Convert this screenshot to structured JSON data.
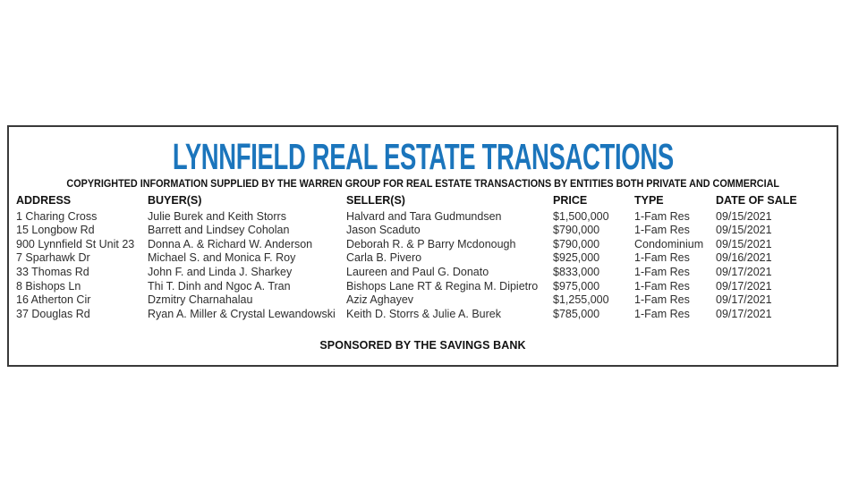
{
  "page": {
    "title": "LYNNFIELD REAL ESTATE TRANSACTIONS",
    "subtitle": "COPYRIGHTED INFORMATION SUPPLIED BY THE WARREN GROUP FOR REAL ESTATE TRANSACTIONS BY ENTITIES BOTH PRIVATE AND COMMERCIAL",
    "sponsor_note": "SPONSORED BY THE SAVINGS BANK"
  },
  "colors": {
    "title_blue": "#1b75bc",
    "border": "#3a3a3a",
    "body_text": "#2e2e2e"
  },
  "table": {
    "columns": [
      "ADDRESS",
      "BUYER(S)",
      "SELLER(S)",
      "PRICE",
      "TYPE",
      "DATE OF SALE"
    ],
    "rows": [
      {
        "address": "1 Charing Cross",
        "buyers": "Julie Burek and Keith Storrs",
        "sellers": "Halvard and Tara Gudmundsen",
        "price": "$1,500,000",
        "type": "1-Fam Res",
        "date": "09/15/2021"
      },
      {
        "address": "15 Longbow Rd",
        "buyers": "Barrett and Lindsey Coholan",
        "sellers": "Jason Scaduto",
        "price": "$790,000",
        "type": "1-Fam Res",
        "date": "09/15/2021"
      },
      {
        "address": "900 Lynnfield St Unit 23",
        "buyers": "Donna A. & Richard W. Anderson",
        "sellers": "Deborah R. & P Barry Mcdonough",
        "price": "$790,000",
        "type": "Condominium",
        "date": "09/15/2021"
      },
      {
        "address": "7 Sparhawk Dr",
        "buyers": "Michael S. and Monica F. Roy",
        "sellers": "Carla B. Pivero",
        "price": "$925,000",
        "type": "1-Fam Res",
        "date": "09/16/2021"
      },
      {
        "address": "33 Thomas Rd",
        "buyers": "John F. and Linda J. Sharkey",
        "sellers": "Laureen and Paul G. Donato",
        "price": "$833,000",
        "type": "1-Fam Res",
        "date": "09/17/2021"
      },
      {
        "address": "8 Bishops Ln",
        "buyers": "Thi T. Dinh and Ngoc A. Tran",
        "sellers": "Bishops Lane RT & Regina M. Dipietro",
        "price": "$975,000",
        "type": "1-Fam Res",
        "date": "09/17/2021"
      },
      {
        "address": "16 Atherton Cir",
        "buyers": "Dzmitry Charnahalau",
        "sellers": "Aziz Aghayev",
        "price": "$1,255,000",
        "type": "1-Fam Res",
        "date": "09/17/2021"
      },
      {
        "address": "37 Douglas Rd",
        "buyers": "Ryan A. Miller & Crystal Lewandowski",
        "sellers": "Keith D. Storrs & Julie A. Burek",
        "price": "$785,000",
        "type": "1-Fam Res",
        "date": "09/17/2021"
      }
    ]
  }
}
